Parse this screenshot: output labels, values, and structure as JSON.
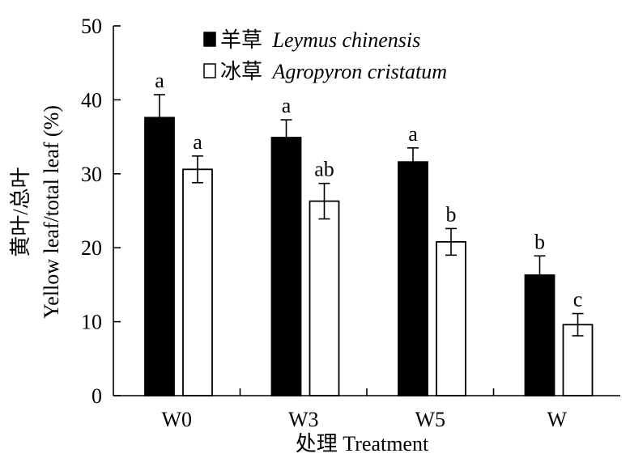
{
  "chart_data": {
    "type": "bar",
    "categories": [
      "W0",
      "W3",
      "W5",
      "W"
    ],
    "series": [
      {
        "name_cn": "羊草",
        "name_latin": "Leymus chinensis",
        "fill": "#000000",
        "values": [
          37.6,
          34.9,
          31.6,
          16.3
        ],
        "errors": [
          3.1,
          2.4,
          1.9,
          2.6
        ],
        "significance": [
          "a",
          "a",
          "a",
          "b"
        ]
      },
      {
        "name_cn": "冰草",
        "name_latin": "Agropyron cristatum",
        "fill": "#ffffff",
        "values": [
          30.6,
          26.3,
          20.8,
          9.6
        ],
        "errors": [
          1.8,
          2.4,
          1.8,
          1.5
        ],
        "significance": [
          "a",
          "ab",
          "b",
          "c"
        ]
      }
    ],
    "ylim": [
      0,
      50
    ],
    "yticks": [
      "0",
      "10",
      "20",
      "30",
      "40",
      "50"
    ],
    "ylabel_cn": "黄叶/总叶",
    "ylabel_en": "Yellow leaf/total leaf (%)",
    "xlabel": "处理 Treatment",
    "legend_position": "top-left",
    "grid": false
  }
}
